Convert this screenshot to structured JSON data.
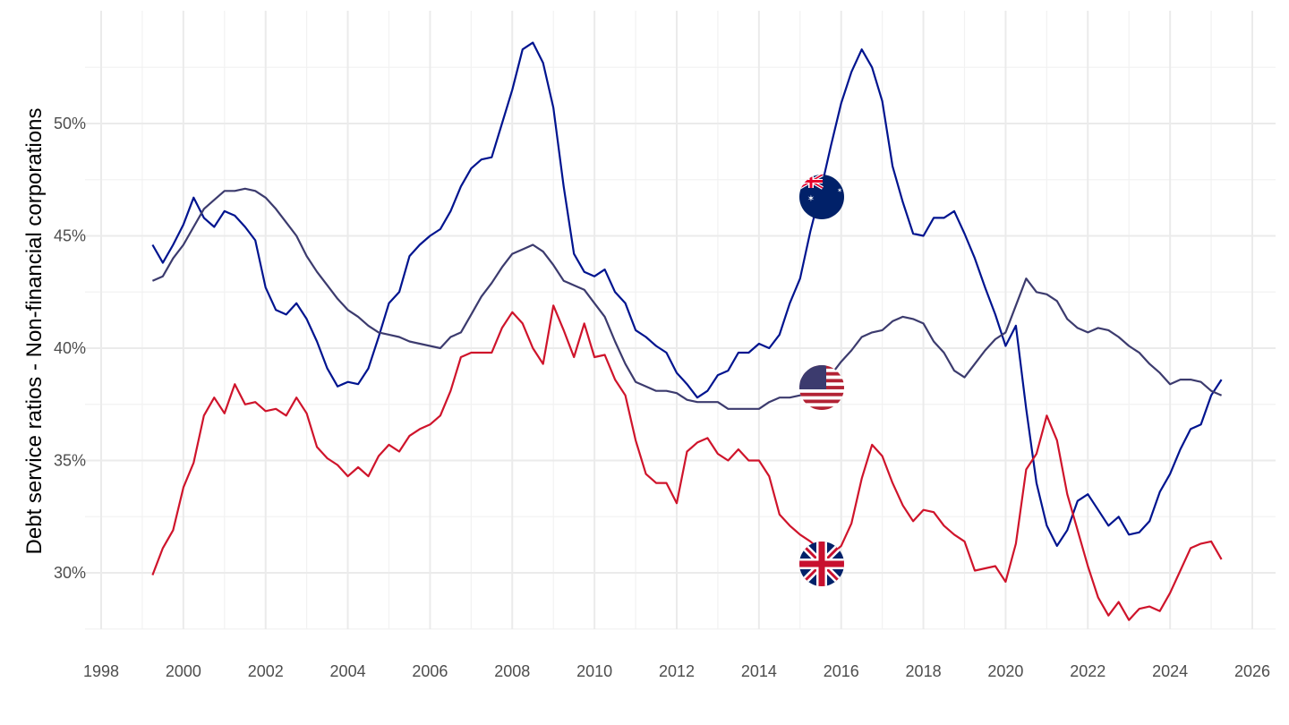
{
  "chart_data": {
    "type": "line",
    "title": "",
    "xlabel": "",
    "ylabel": "Debt service ratios - Non-financial corporations",
    "xlim": [
      1997.6,
      2026.6
    ],
    "ylim": [
      27.3,
      55.0
    ],
    "grid": true,
    "legend": "flag markers on lines",
    "x_ticks": [
      "1998",
      "2000",
      "2002",
      "2004",
      "2006",
      "2008",
      "2010",
      "2012",
      "2014",
      "2016",
      "2018",
      "2020",
      "2022",
      "2024",
      "2026"
    ],
    "x_tick_values": [
      1998,
      2000,
      2002,
      2004,
      2006,
      2008,
      2010,
      2012,
      2014,
      2016,
      2018,
      2020,
      2022,
      2024,
      2026
    ],
    "y_ticks": [
      "30%",
      "35%",
      "40%",
      "45%",
      "50%"
    ],
    "y_tick_values": [
      30,
      35,
      40,
      45,
      50
    ],
    "x_start": 1999.25,
    "x_step": 0.25,
    "series": [
      {
        "name": "Australia",
        "color": "#00148f",
        "flag": "australia-flag",
        "values": [
          44.6,
          43.8,
          44.6,
          45.5,
          46.7,
          45.8,
          45.4,
          46.1,
          45.9,
          45.4,
          44.8,
          42.7,
          41.7,
          41.5,
          42.0,
          41.3,
          40.3,
          39.1,
          38.3,
          38.5,
          38.4,
          39.1,
          40.5,
          42.0,
          42.5,
          44.1,
          44.6,
          45.0,
          45.3,
          46.1,
          47.2,
          48.0,
          48.4,
          48.5,
          50.0,
          51.5,
          53.3,
          53.6,
          52.7,
          50.7,
          47.2,
          44.2,
          43.4,
          43.2,
          43.5,
          42.5,
          42.0,
          40.8,
          40.5,
          40.1,
          39.8,
          38.9,
          38.4,
          37.8,
          38.1,
          38.8,
          39.0,
          39.8,
          39.8,
          40.2,
          40.0,
          40.6,
          42.0,
          43.1,
          45.2,
          47.0,
          49.0,
          50.9,
          52.3,
          53.3,
          52.5,
          51.0,
          48.1,
          46.5,
          45.1,
          45.0,
          45.8,
          45.8,
          46.1,
          45.1,
          44.0,
          42.7,
          41.5,
          40.1,
          41.0,
          37.3,
          34.0,
          32.1,
          31.2,
          31.9,
          33.2,
          33.5,
          32.8,
          32.1,
          32.5,
          31.7,
          31.8,
          32.3,
          33.6,
          34.4,
          35.5,
          36.4,
          36.6,
          37.9,
          38.6
        ]
      },
      {
        "name": "United States",
        "color": "#3c3b6e",
        "flag": "usa-flag",
        "values": [
          43.0,
          43.2,
          44.0,
          44.6,
          45.4,
          46.2,
          46.6,
          47.0,
          47.0,
          47.1,
          47.0,
          46.7,
          46.2,
          45.6,
          45.0,
          44.1,
          43.4,
          42.8,
          42.2,
          41.7,
          41.4,
          41.0,
          40.7,
          40.6,
          40.5,
          40.3,
          40.2,
          40.1,
          40.0,
          40.5,
          40.7,
          41.5,
          42.3,
          42.9,
          43.6,
          44.2,
          44.4,
          44.6,
          44.3,
          43.7,
          43.0,
          42.8,
          42.6,
          42.0,
          41.4,
          40.3,
          39.3,
          38.5,
          38.3,
          38.1,
          38.1,
          38.0,
          37.7,
          37.6,
          37.6,
          37.6,
          37.3,
          37.3,
          37.3,
          37.3,
          37.6,
          37.8,
          37.8,
          37.9,
          38.0,
          38.3,
          38.8,
          39.4,
          39.9,
          40.5,
          40.7,
          40.8,
          41.2,
          41.4,
          41.3,
          41.1,
          40.3,
          39.8,
          39.0,
          38.7,
          39.3,
          39.9,
          40.4,
          40.7,
          41.9,
          43.1,
          42.5,
          42.4,
          42.1,
          41.3,
          40.9,
          40.7,
          40.9,
          40.8,
          40.5,
          40.1,
          39.8,
          39.3,
          38.9,
          38.4,
          38.6,
          38.6,
          38.5,
          38.1,
          37.9
        ]
      },
      {
        "name": "United Kingdom",
        "color": "#cf142b",
        "flag": "uk-flag",
        "values": [
          29.9,
          31.1,
          31.9,
          33.8,
          34.9,
          37.0,
          37.8,
          37.1,
          38.4,
          37.5,
          37.6,
          37.2,
          37.3,
          37.0,
          37.8,
          37.1,
          35.6,
          35.1,
          34.8,
          34.3,
          34.7,
          34.3,
          35.2,
          35.7,
          35.4,
          36.1,
          36.4,
          36.6,
          37.0,
          38.1,
          39.6,
          39.8,
          39.8,
          39.8,
          40.9,
          41.6,
          41.1,
          40.0,
          39.3,
          41.9,
          40.8,
          39.6,
          41.1,
          39.6,
          39.7,
          38.6,
          37.9,
          35.9,
          34.4,
          34.0,
          34.0,
          33.1,
          35.4,
          35.8,
          36.0,
          35.3,
          35.0,
          35.5,
          35.0,
          35.0,
          34.3,
          32.6,
          32.1,
          31.7,
          31.4,
          31.0,
          30.8,
          31.2,
          32.2,
          34.2,
          35.7,
          35.2,
          34.0,
          33.0,
          32.3,
          32.8,
          32.7,
          32.1,
          31.7,
          31.4,
          30.1,
          30.2,
          30.3,
          29.6,
          31.3,
          34.6,
          35.3,
          37.0,
          35.9,
          33.5,
          31.9,
          30.3,
          28.9,
          28.1,
          28.7,
          27.9,
          28.4,
          28.5,
          28.3,
          29.1,
          30.1,
          31.1,
          31.3,
          31.4,
          30.6
        ]
      }
    ]
  }
}
